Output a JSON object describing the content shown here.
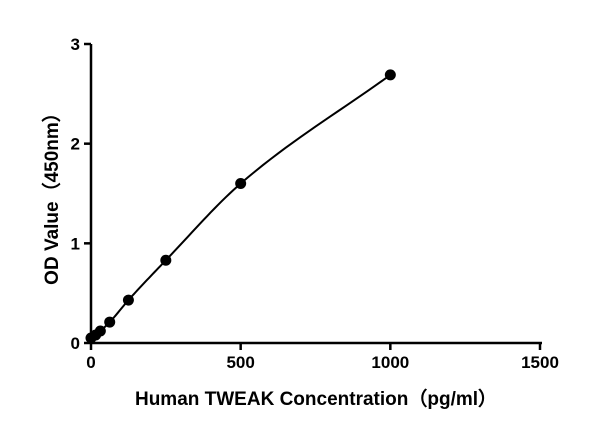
{
  "chart_data": {
    "type": "scatter",
    "title": "",
    "xlabel": "Human TWEAK Concentration（pg/ml）",
    "ylabel": "OD Value（450nm）",
    "xlim": [
      0,
      1500
    ],
    "ylim": [
      0,
      3
    ],
    "xticks": [
      0,
      500,
      1000,
      1500
    ],
    "yticks": [
      0,
      1,
      2,
      3
    ],
    "grid": false,
    "legend": "none",
    "series": [
      {
        "x": [
          0,
          15.6,
          31.25,
          62.5,
          125,
          250,
          500,
          1000
        ],
        "y": [
          0.05,
          0.08,
          0.12,
          0.21,
          0.43,
          0.83,
          1.6,
          2.69
        ],
        "style": "points-with-fitted-curve",
        "color": "#000000"
      }
    ]
  }
}
